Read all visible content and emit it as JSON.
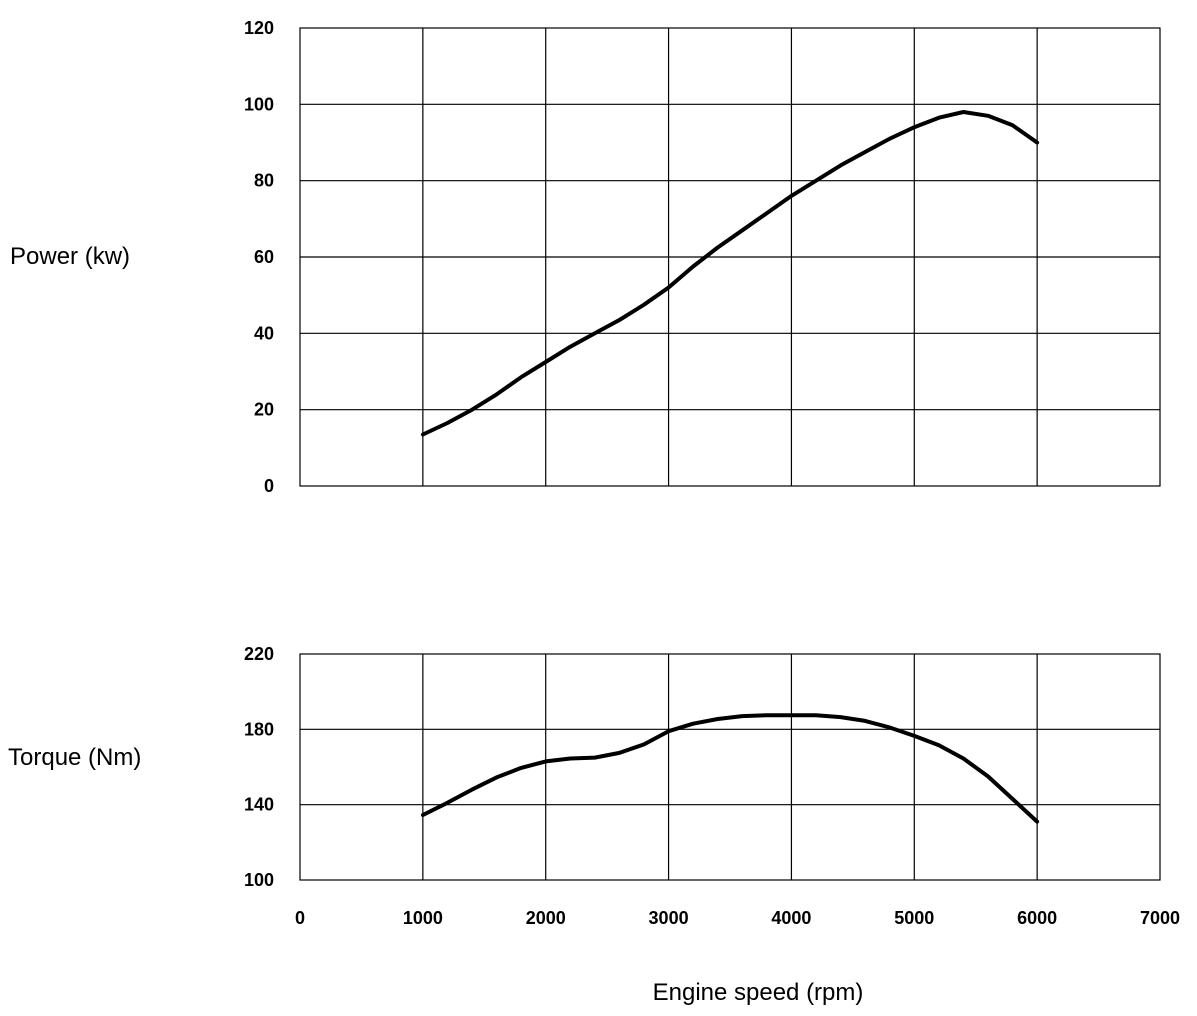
{
  "chart_data": [
    {
      "type": "line",
      "title": "",
      "ylabel": "Power  (kw)",
      "xlabel": "",
      "xlim": [
        0,
        7000
      ],
      "ylim": [
        0,
        120
      ],
      "xticks": [
        0,
        1000,
        2000,
        3000,
        4000,
        5000,
        6000,
        7000
      ],
      "yticks": [
        0,
        20,
        40,
        60,
        80,
        100,
        120
      ],
      "xtick_labels": [],
      "ytick_labels": [
        "0",
        "20",
        "40",
        "60",
        "80",
        "100",
        "120"
      ],
      "grid": true,
      "series": [
        {
          "x": [
            1000,
            1200,
            1400,
            1600,
            1800,
            2000,
            2200,
            2400,
            2600,
            2800,
            3000,
            3200,
            3400,
            3600,
            3800,
            4000,
            4200,
            4400,
            4600,
            4800,
            5000,
            5200,
            5400,
            5600,
            5800,
            6000
          ],
          "y": [
            13.5,
            16.5,
            20,
            24,
            28.5,
            32.5,
            36.5,
            40,
            43.5,
            47.5,
            52,
            57.5,
            62.5,
            67,
            71.5,
            76,
            80,
            84,
            87.5,
            91,
            94,
            96.5,
            98,
            97,
            94.5,
            90
          ]
        }
      ]
    },
    {
      "type": "line",
      "title": "",
      "ylabel": "Torque  (Nm)",
      "xlabel": "Engine  speed  (rpm)",
      "xlim": [
        0,
        7000
      ],
      "ylim": [
        100,
        220
      ],
      "xticks": [
        0,
        1000,
        2000,
        3000,
        4000,
        5000,
        6000,
        7000
      ],
      "yticks": [
        100,
        140,
        180,
        220
      ],
      "xtick_labels": [
        "0",
        "1000",
        "2000",
        "3000",
        "4000",
        "5000",
        "6000",
        "7000"
      ],
      "ytick_labels": [
        "100",
        "140",
        "180",
        "220"
      ],
      "grid": true,
      "series": [
        {
          "x": [
            1000,
            1200,
            1400,
            1600,
            1800,
            2000,
            2200,
            2400,
            2600,
            2800,
            3000,
            3200,
            3400,
            3600,
            3800,
            4000,
            4200,
            4400,
            4600,
            4800,
            5000,
            5200,
            5400,
            5600,
            5800,
            6000
          ],
          "y": [
            134.5,
            141,
            148,
            154.5,
            159.5,
            163,
            164.5,
            165,
            167.5,
            172,
            179,
            183,
            185.5,
            187,
            187.5,
            187.5,
            187.5,
            186.5,
            184.5,
            181,
            176.5,
            171.5,
            164.5,
            155,
            143,
            131
          ]
        }
      ]
    }
  ]
}
